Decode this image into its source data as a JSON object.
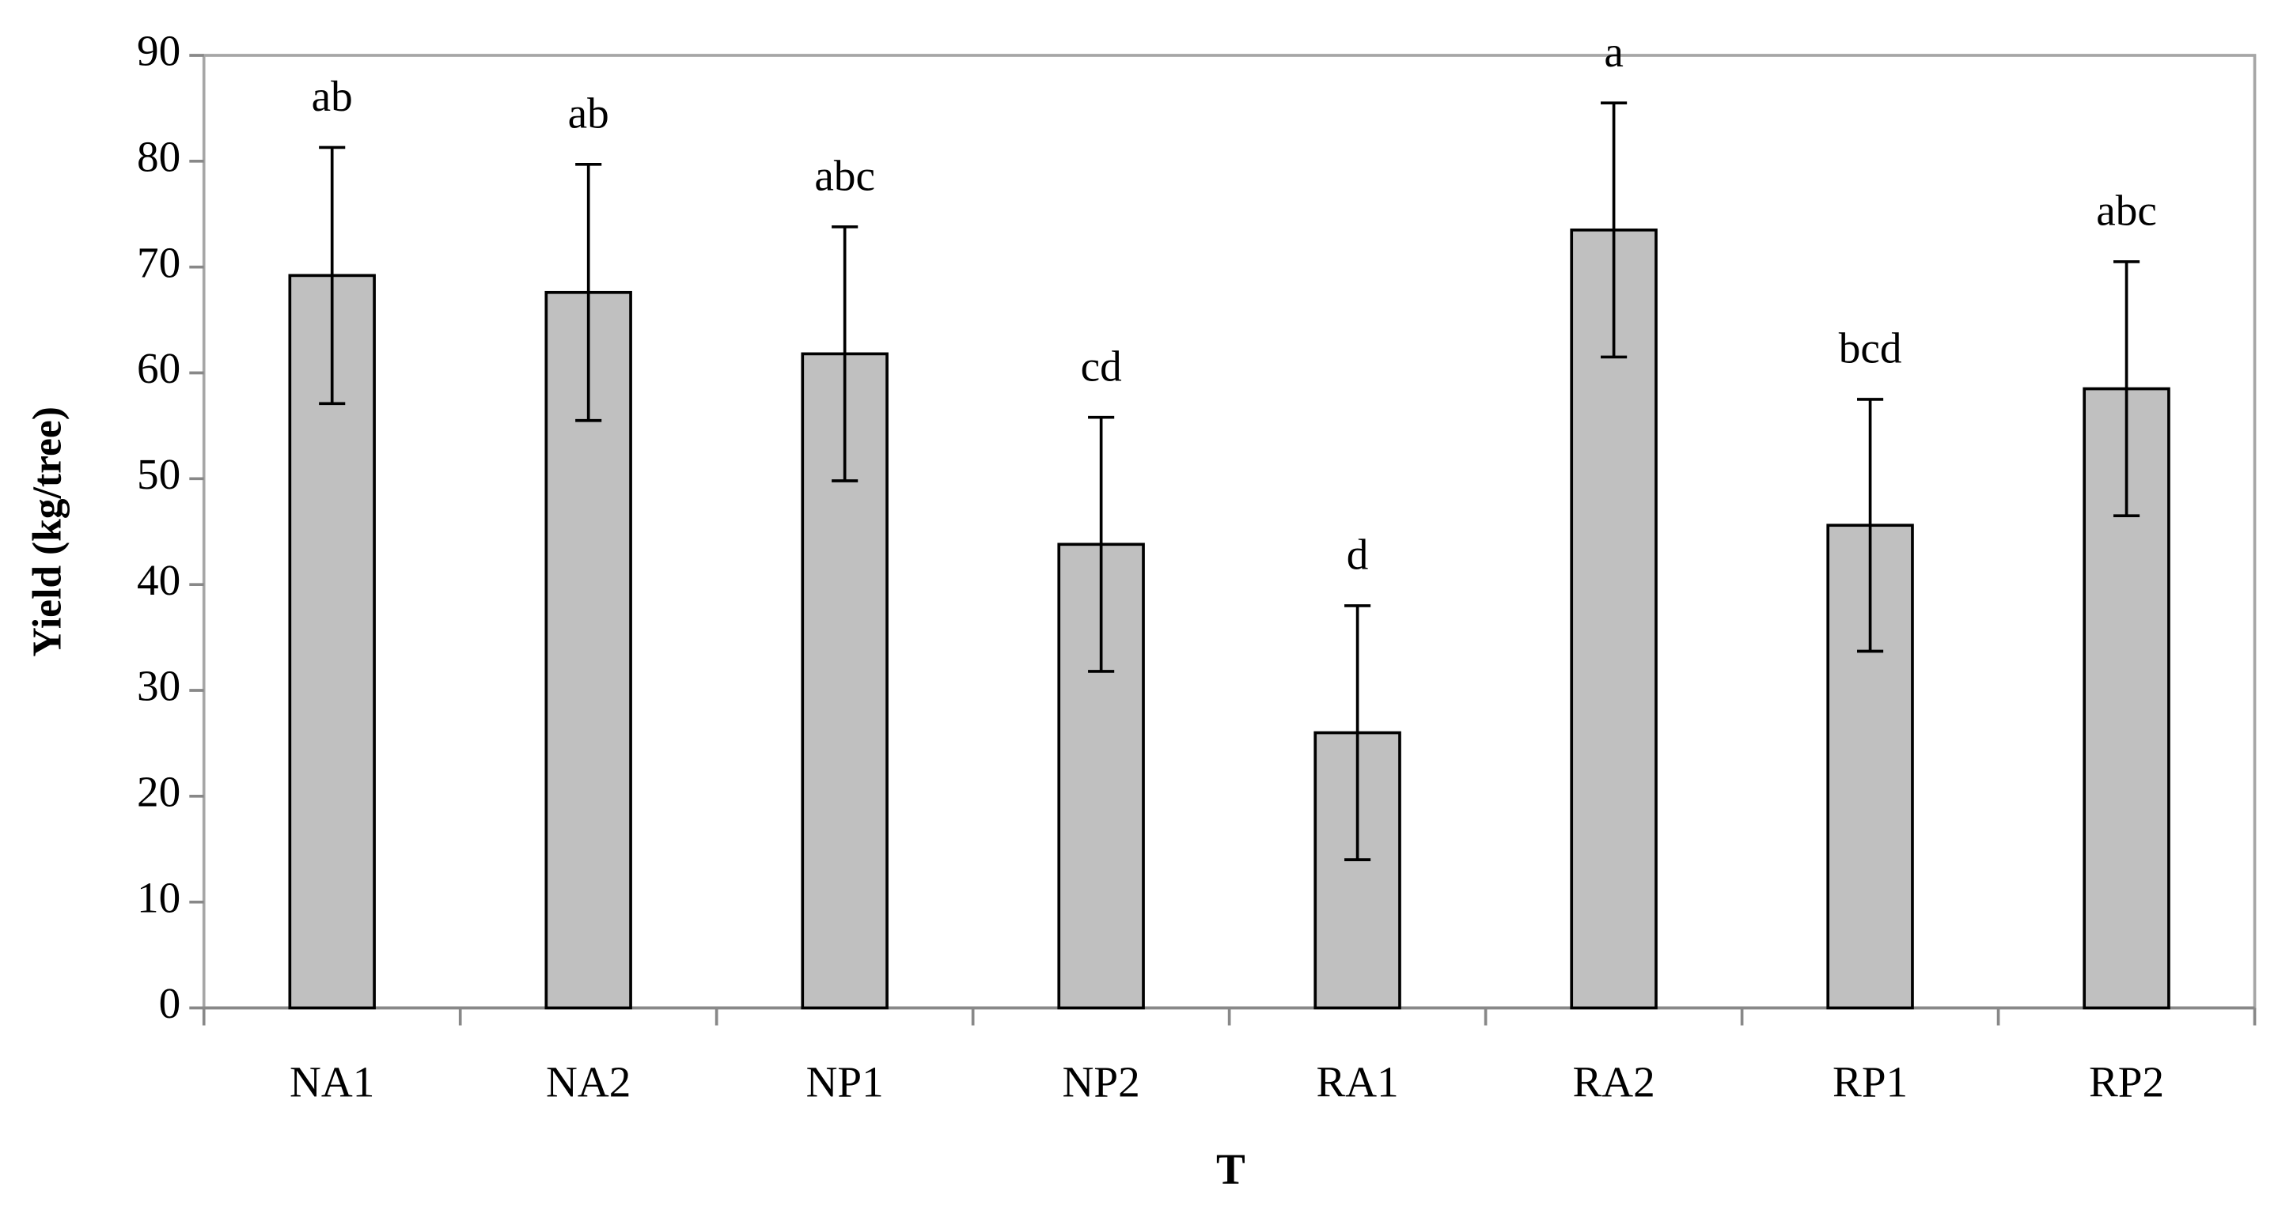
{
  "chart_data": {
    "type": "bar",
    "x_label": "T",
    "y_label": "Yield (kg/tree)",
    "categories": [
      "NA1",
      "NA2",
      "NP1",
      "NP2",
      "RA1",
      "RA2",
      "RP1",
      "RP2"
    ],
    "values": [
      69.2,
      67.6,
      61.8,
      43.8,
      26,
      73.5,
      45.6,
      58.5
    ],
    "errors": [
      12.1,
      12.1,
      12,
      12,
      12,
      12,
      11.9,
      12
    ],
    "letters": [
      "ab",
      "ab",
      "abc",
      "cd",
      "d",
      "a",
      "bcd",
      "abc"
    ],
    "color": "#c0c0c0",
    "ylim": [
      0,
      90
    ],
    "yticks": [
      0,
      10,
      20,
      30,
      40,
      50,
      60,
      70,
      80,
      90
    ],
    "grid": false
  }
}
